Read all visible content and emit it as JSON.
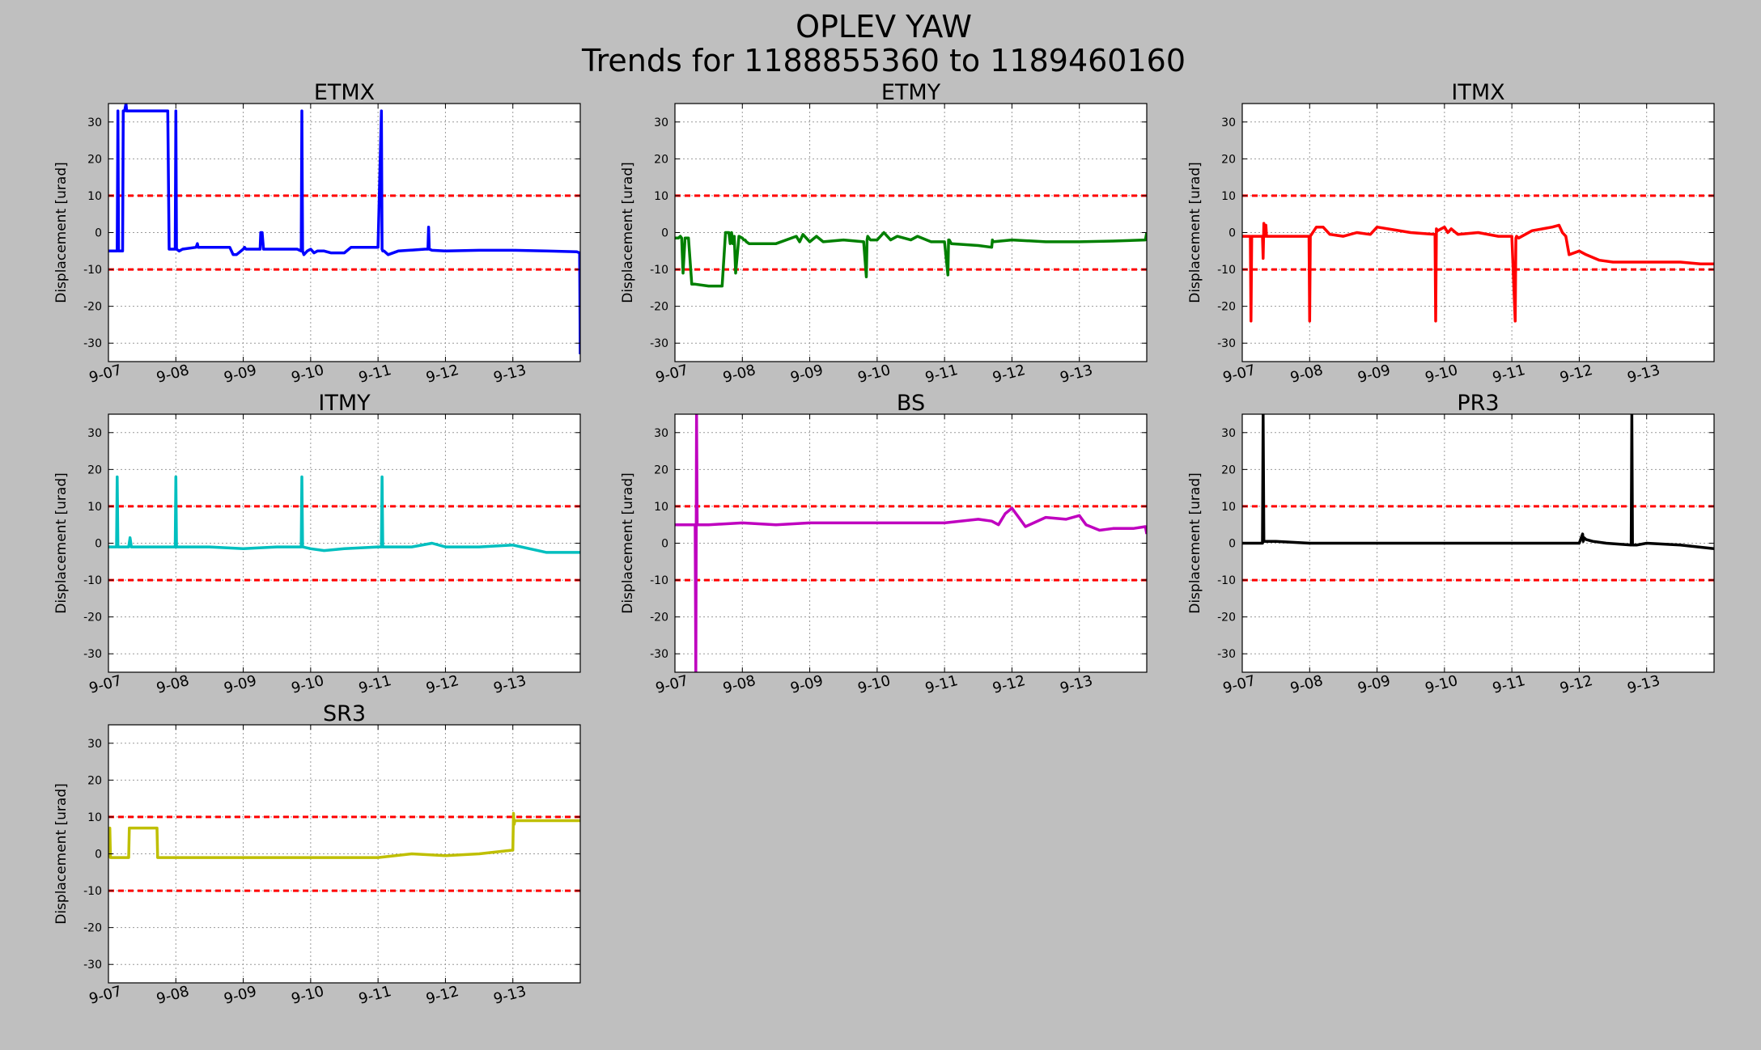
{
  "figure": {
    "title_line1": "OPLEV YAW",
    "title_line2": "Trends for 1188855360 to 1189460160"
  },
  "chart_data": [
    {
      "type": "line",
      "title": "ETMX",
      "ylabel": "Displacement [urad]",
      "color": "#0000ff",
      "ylim": [
        -35,
        35
      ],
      "xlim": [
        0,
        7
      ],
      "yticks": [
        -30,
        -20,
        -10,
        0,
        10,
        20,
        30
      ],
      "xticks": [
        0,
        1,
        2,
        3,
        4,
        5,
        6
      ],
      "xtick_labels": [
        "9-07",
        "9-08",
        "9-09",
        "9-10",
        "9-11",
        "9-12",
        "9-13"
      ],
      "thresholds": [
        10,
        -10
      ],
      "threshold_color": "#ff0000",
      "grid": true,
      "series": [
        {
          "x": [
            0,
            0.12,
            0.13,
            0.14,
            0.15,
            0.16,
            0.2,
            0.21,
            0.22,
            0.24,
            0.26,
            0.27,
            0.28,
            0.3,
            0.6,
            0.88,
            0.9,
            0.95,
            0.99,
            1.0,
            1.01,
            1.05,
            1.1,
            1.3,
            1.32,
            1.33,
            1.35,
            1.5,
            1.8,
            1.85,
            1.9,
            2.0,
            2.02,
            2.04,
            2.06,
            2.1,
            2.25,
            2.26,
            2.28,
            2.3,
            2.32,
            2.4,
            2.8,
            2.86,
            2.87,
            2.88,
            2.9,
            2.95,
            3.0,
            3.05,
            3.1,
            3.2,
            3.3,
            3.5,
            3.6,
            3.75,
            3.8,
            4.0,
            4.05,
            4.06,
            4.07,
            4.09,
            4.15,
            4.3,
            4.7,
            4.74,
            4.75,
            4.76,
            4.8,
            5.0,
            5.5,
            6.0,
            6.5,
            6.95,
            6.99,
            7.0
          ],
          "y": [
            -5,
            -5,
            -5,
            33,
            -5,
            -5,
            -5,
            -5,
            33,
            33,
            35,
            33,
            33,
            33,
            33,
            33,
            -4.5,
            -4.5,
            -4.5,
            33,
            -4.5,
            -5,
            -4.5,
            -4,
            -3,
            -4,
            -4,
            -4,
            -4,
            -6,
            -6,
            -4.5,
            -4,
            -4.5,
            -4.5,
            -4.5,
            -4.5,
            0,
            0,
            -4.5,
            -4.5,
            -4.5,
            -4.5,
            -5,
            33,
            -5,
            -6,
            -5,
            -4.5,
            -5.5,
            -5,
            -5,
            -5.5,
            -5.5,
            -4,
            -4,
            -4,
            -4,
            33,
            -4.5,
            -5,
            -5,
            -6,
            -5,
            -4.5,
            -4.5,
            1.5,
            -4.5,
            -4.8,
            -5,
            -4.8,
            -4.8,
            -5,
            -5.2,
            -5.5,
            -33
          ]
        }
      ]
    },
    {
      "type": "line",
      "title": "ETMY",
      "ylabel": "Displacement [urad]",
      "color": "#008000",
      "ylim": [
        -35,
        35
      ],
      "xlim": [
        0,
        7
      ],
      "yticks": [
        -30,
        -20,
        -10,
        0,
        10,
        20,
        30
      ],
      "xticks": [
        0,
        1,
        2,
        3,
        4,
        5,
        6
      ],
      "xtick_labels": [
        "9-07",
        "9-08",
        "9-09",
        "9-10",
        "9-11",
        "9-12",
        "9-13"
      ],
      "thresholds": [
        10,
        -10
      ],
      "threshold_color": "#ff0000",
      "grid": true,
      "series": [
        {
          "x": [
            0,
            0.05,
            0.08,
            0.1,
            0.12,
            0.15,
            0.18,
            0.2,
            0.25,
            0.3,
            0.5,
            0.7,
            0.75,
            0.78,
            0.8,
            0.82,
            0.84,
            0.86,
            0.88,
            0.9,
            0.95,
            1.0,
            1.02,
            1.04,
            1.06,
            1.1,
            1.3,
            1.5,
            1.8,
            1.85,
            1.9,
            2.0,
            2.1,
            2.2,
            2.5,
            2.8,
            2.84,
            2.85,
            2.86,
            2.9,
            3.0,
            3.1,
            3.2,
            3.3,
            3.5,
            3.6,
            3.8,
            4.0,
            4.05,
            4.06,
            4.07,
            4.1,
            4.5,
            4.7,
            4.71,
            4.72,
            5.0,
            5.5,
            6.0,
            6.5,
            6.98,
            7.0
          ],
          "y": [
            -1.5,
            -1.5,
            -1,
            -1.5,
            -11,
            -1.5,
            -1.5,
            -1.5,
            -14,
            -14,
            -14.5,
            -14.5,
            0,
            0,
            0,
            -3,
            0,
            -3,
            -1,
            -11,
            -1,
            -1.5,
            -2,
            -2,
            -2.5,
            -3,
            -3,
            -3,
            -1,
            -2.5,
            -0.5,
            -2.5,
            -1,
            -2.5,
            -2,
            -2.5,
            -12,
            -2,
            -1,
            -2,
            -2,
            0,
            -2,
            -1,
            -2,
            -1,
            -2.5,
            -2.5,
            -11.5,
            -2,
            -2,
            -3,
            -3.5,
            -4,
            -2,
            -2.5,
            -2,
            -2.5,
            -2.5,
            -2.3,
            -2,
            0
          ]
        }
      ]
    },
    {
      "type": "line",
      "title": "ITMX",
      "ylabel": "Displacement [urad]",
      "color": "#ff0000",
      "ylim": [
        -35,
        35
      ],
      "xlim": [
        0,
        7
      ],
      "yticks": [
        -30,
        -20,
        -10,
        0,
        10,
        20,
        30
      ],
      "xticks": [
        0,
        1,
        2,
        3,
        4,
        5,
        6
      ],
      "xtick_labels": [
        "9-07",
        "9-08",
        "9-09",
        "9-10",
        "9-11",
        "9-12",
        "9-13"
      ],
      "thresholds": [
        10,
        -10
      ],
      "threshold_color": "#ff0000",
      "grid": true,
      "series": [
        {
          "x": [
            0,
            0.12,
            0.13,
            0.14,
            0.3,
            0.31,
            0.32,
            0.34,
            0.35,
            0.36,
            0.5,
            0.9,
            0.99,
            1.0,
            1.01,
            1.1,
            1.2,
            1.3,
            1.31,
            1.5,
            1.7,
            1.9,
            2.0,
            2.5,
            2.86,
            2.87,
            2.88,
            2.9,
            3.0,
            3.05,
            3.1,
            3.2,
            3.5,
            3.8,
            4.0,
            4.05,
            4.06,
            4.07,
            4.1,
            4.3,
            4.6,
            4.7,
            4.75,
            4.8,
            4.85,
            5.0,
            5.1,
            5.3,
            5.5,
            6.0,
            6.5,
            6.8,
            7.0
          ],
          "y": [
            -1,
            -1,
            -24,
            -1,
            -1,
            -7,
            2.5,
            -1,
            2,
            -1,
            -1,
            -1,
            -1,
            -24,
            -1,
            1.5,
            1.5,
            -0.5,
            -0.5,
            -1,
            0,
            -0.5,
            1.5,
            0,
            -0.5,
            -24,
            1,
            0.5,
            1.5,
            0,
            1,
            -0.5,
            0,
            -1,
            -1,
            -24,
            -1.5,
            -1,
            -1.5,
            0.5,
            1.5,
            2,
            0,
            -1,
            -6,
            -5,
            -6,
            -7.5,
            -8,
            -8,
            -8,
            -8.5,
            -8.5
          ]
        }
      ]
    },
    {
      "type": "line",
      "title": "ITMY",
      "ylabel": "Displacement [urad]",
      "color": "#00bfbf",
      "ylim": [
        -35,
        35
      ],
      "xlim": [
        0,
        7
      ],
      "yticks": [
        -30,
        -20,
        -10,
        0,
        10,
        20,
        30
      ],
      "xticks": [
        0,
        1,
        2,
        3,
        4,
        5,
        6
      ],
      "xtick_labels": [
        "9-07",
        "9-08",
        "9-09",
        "9-10",
        "9-11",
        "9-12",
        "9-13"
      ],
      "thresholds": [
        10,
        -10
      ],
      "threshold_color": "#ff0000",
      "grid": true,
      "series": [
        {
          "x": [
            0,
            0.12,
            0.13,
            0.14,
            0.3,
            0.32,
            0.34,
            0.5,
            0.99,
            1.0,
            1.01,
            1.5,
            2.0,
            2.5,
            2.86,
            2.87,
            2.88,
            3.0,
            3.2,
            3.5,
            4.0,
            4.05,
            4.06,
            4.07,
            4.5,
            4.8,
            5.0,
            5.5,
            6.0,
            6.5,
            7.0
          ],
          "y": [
            -1,
            -1,
            18,
            -1,
            -1,
            1.5,
            -1,
            -1,
            -1,
            18,
            -1,
            -1,
            -1.5,
            -1,
            -1,
            18,
            -1,
            -1.5,
            -2,
            -1.5,
            -1,
            -1,
            18,
            -1,
            -1,
            0,
            -1,
            -1,
            -0.5,
            -2.5,
            -2.5
          ]
        }
      ]
    },
    {
      "type": "line",
      "title": "BS",
      "ylabel": "Displacement [urad]",
      "color": "#bf00bf",
      "ylim": [
        -35,
        35
      ],
      "xlim": [
        0,
        7
      ],
      "yticks": [
        -30,
        -20,
        -10,
        0,
        10,
        20,
        30
      ],
      "xticks": [
        0,
        1,
        2,
        3,
        4,
        5,
        6
      ],
      "xtick_labels": [
        "9-07",
        "9-08",
        "9-09",
        "9-10",
        "9-11",
        "9-12",
        "9-13"
      ],
      "thresholds": [
        10,
        -10
      ],
      "threshold_color": "#ff0000",
      "grid": true,
      "series": [
        {
          "x": [
            0,
            0.3,
            0.31,
            0.32,
            0.33,
            0.5,
            1.0,
            1.5,
            2.0,
            2.5,
            3.0,
            3.5,
            4.0,
            4.5,
            4.7,
            4.8,
            4.9,
            5.0,
            5.1,
            5.2,
            5.5,
            5.8,
            6.0,
            6.1,
            6.3,
            6.5,
            6.8,
            6.98,
            7.0
          ],
          "y": [
            5,
            5,
            -35,
            35,
            5,
            5,
            5.5,
            5,
            5.5,
            5.5,
            5.5,
            5.5,
            5.5,
            6.5,
            6,
            5,
            8,
            9.5,
            7,
            4.5,
            7,
            6.5,
            7.5,
            5,
            3.5,
            4,
            4,
            4.5,
            2.5
          ]
        }
      ]
    },
    {
      "type": "line",
      "title": "PR3",
      "ylabel": "Displacement [urad]",
      "color": "#000000",
      "ylim": [
        -35,
        35
      ],
      "xlim": [
        0,
        7
      ],
      "yticks": [
        -30,
        -20,
        -10,
        0,
        10,
        20,
        30
      ],
      "xticks": [
        0,
        1,
        2,
        3,
        4,
        5,
        6
      ],
      "xtick_labels": [
        "9-07",
        "9-08",
        "9-09",
        "9-10",
        "9-11",
        "9-12",
        "9-13"
      ],
      "thresholds": [
        10,
        -10
      ],
      "threshold_color": "#ff0000",
      "grid": true,
      "series": [
        {
          "x": [
            0,
            0.3,
            0.31,
            0.32,
            0.5,
            1.0,
            2.0,
            3.0,
            4.0,
            4.5,
            4.9,
            5.0,
            5.05,
            5.06,
            5.07,
            5.1,
            5.2,
            5.4,
            5.77,
            5.78,
            5.79,
            5.85,
            6.0,
            6.5,
            7.0
          ],
          "y": [
            0,
            0,
            35,
            0.5,
            0.5,
            0,
            0,
            0,
            0,
            0,
            0,
            0,
            2.5,
            0.5,
            1.5,
            1,
            0.5,
            0,
            -0.5,
            35,
            -0.5,
            -0.5,
            0,
            -0.5,
            -1.5
          ]
        }
      ]
    },
    {
      "type": "line",
      "title": "SR3",
      "ylabel": "Displacement [urad]",
      "color": "#bfbf00",
      "ylim": [
        -35,
        35
      ],
      "xlim": [
        0,
        7
      ],
      "yticks": [
        -30,
        -20,
        -10,
        0,
        10,
        20,
        30
      ],
      "xticks": [
        0,
        1,
        2,
        3,
        4,
        5,
        6
      ],
      "xtick_labels": [
        "9-07",
        "9-08",
        "9-09",
        "9-10",
        "9-11",
        "9-12",
        "9-13"
      ],
      "thresholds": [
        10,
        -10
      ],
      "threshold_color": "#ff0000",
      "grid": true,
      "series": [
        {
          "x": [
            0,
            0.02,
            0.03,
            0.04,
            0.3,
            0.31,
            0.72,
            0.73,
            1.0,
            2.0,
            3.0,
            4.0,
            4.5,
            5.0,
            5.5,
            6.0,
            6.01,
            6.02,
            6.03,
            6.05,
            6.3,
            7.0
          ],
          "y": [
            -1,
            7,
            -1,
            -1,
            -1,
            7,
            7,
            -1,
            -1,
            -1,
            -1,
            -1,
            0,
            -0.5,
            0,
            1,
            11,
            8,
            9,
            9,
            9,
            9
          ]
        }
      ]
    }
  ]
}
